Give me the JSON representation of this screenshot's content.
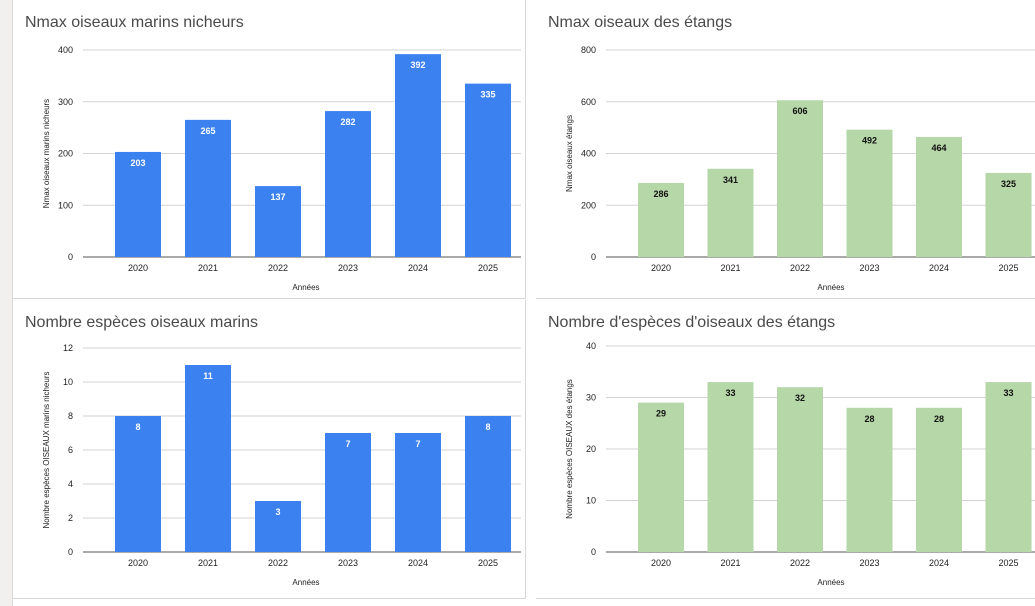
{
  "chart_data": [
    {
      "type": "bar",
      "title": "Nmax oiseaux marins nicheurs",
      "xlabel": "Années",
      "ylabel": "Nmax oiseaux marins nicheurs",
      "categories": [
        "2020",
        "2021",
        "2022",
        "2023",
        "2024",
        "2025"
      ],
      "values": [
        203,
        265,
        137,
        282,
        392,
        335
      ],
      "ylim": [
        0,
        400
      ],
      "yticks": [
        0,
        100,
        200,
        300,
        400
      ],
      "grid": true,
      "bar_color": "#3b82f0",
      "label_color": "#ffffff"
    },
    {
      "type": "bar",
      "title": "Nmax oiseaux des étangs",
      "xlabel": "Années",
      "ylabel": "Nmax oiseaux étangs",
      "categories": [
        "2020",
        "2021",
        "2022",
        "2023",
        "2024",
        "2025"
      ],
      "values": [
        286,
        341,
        606,
        492,
        464,
        325
      ],
      "ylim": [
        0,
        800
      ],
      "yticks": [
        0,
        200,
        400,
        600,
        800
      ],
      "grid": true,
      "bar_color": "#b6d7a8",
      "label_color": "#111111"
    },
    {
      "type": "bar",
      "title": "Nombre espèces oiseaux marins",
      "xlabel": "Années",
      "ylabel": "Nombre espèces OISEAUX marins nicheurs",
      "categories": [
        "2020",
        "2021",
        "2022",
        "2023",
        "2024",
        "2025"
      ],
      "values": [
        8,
        11,
        3,
        7,
        7,
        8
      ],
      "ylim": [
        0,
        12
      ],
      "yticks": [
        0,
        2,
        4,
        6,
        8,
        10,
        12
      ],
      "grid": true,
      "bar_color": "#3b82f0",
      "label_color": "#ffffff"
    },
    {
      "type": "bar",
      "title": "Nombre d'espèces d'oiseaux des étangs",
      "xlabel": "Années",
      "ylabel": "Nombre espèces OISEAUX des étangs",
      "categories": [
        "2020",
        "2021",
        "2022",
        "2023",
        "2024",
        "2025"
      ],
      "values": [
        29,
        33,
        32,
        28,
        28,
        33
      ],
      "ylim": [
        0,
        40
      ],
      "yticks": [
        0,
        10,
        20,
        30,
        40
      ],
      "grid": true,
      "bar_color": "#b6d7a8",
      "label_color": "#111111"
    }
  ]
}
